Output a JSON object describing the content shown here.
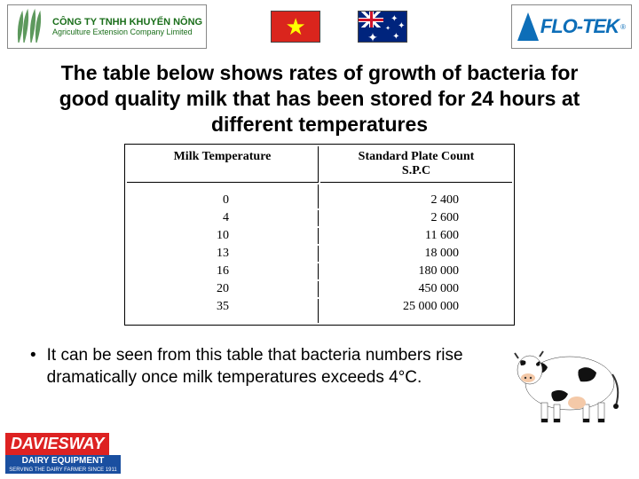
{
  "header": {
    "company_line1": "CÔNG TY TNHH KHUYẾN NÔNG",
    "company_line2": "Agriculture Extension Company Limited",
    "flotek": "FLO-TEK",
    "flotek_reg": "®"
  },
  "title": "The table below shows rates of growth of bacteria for good quality milk that has been stored for 24 hours at different temperatures",
  "table": {
    "col1_header": "Milk Temperature",
    "col2_header_l1": "Standard Plate Count",
    "col2_header_l2": "S.P.C",
    "rows": [
      {
        "temp": "0",
        "spc": "2 400"
      },
      {
        "temp": "4",
        "spc": "2 600"
      },
      {
        "temp": "10",
        "spc": "11 600"
      },
      {
        "temp": "13",
        "spc": "18 000"
      },
      {
        "temp": "16",
        "spc": "180 000"
      },
      {
        "temp": "20",
        "spc": "450 000"
      },
      {
        "temp": "35",
        "spc": "25 000 000"
      }
    ]
  },
  "bullet_text": "It can be seen from this table that bacteria numbers rise dramatically once milk temperatures exceeds 4°C.",
  "footer": {
    "brand": "DAVIESWAY",
    "sub": "DAIRY EQUIPMENT",
    "tag": "SERVING THE DAIRY FARMER SINCE 1911"
  },
  "colors": {
    "brand_green": "#1a6e1a",
    "flotek_blue": "#0d6eb8",
    "vn_red": "#da251d",
    "vn_yellow": "#ffff00",
    "au_blue": "#00247d",
    "dw_red": "#d22",
    "dw_blue": "#1a4fa0"
  }
}
